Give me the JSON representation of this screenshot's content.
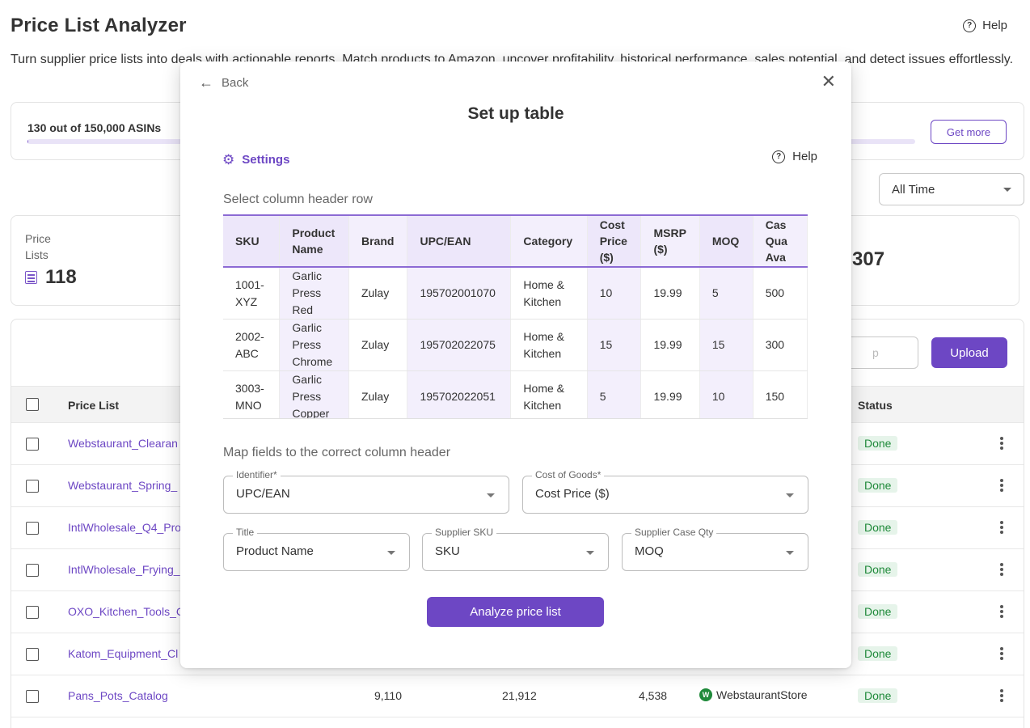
{
  "page": {
    "title": "Price List Analyzer",
    "help_label": "Help",
    "description": "Turn supplier price lists into deals with actionable reports. Match products to Amazon, uncover profitability, historical performance, sales potential, and detect issues effortlessly."
  },
  "quota": {
    "text": "130 out of 150,000 ASINs",
    "used_fraction": 0.001,
    "get_more_label": "Get more"
  },
  "filter": {
    "time_range": "All Time"
  },
  "stats": {
    "price_lists_label": "Price Lists",
    "price_lists_value": "118",
    "partial_value": "307"
  },
  "table": {
    "search_placeholder": "p",
    "upload_label": "Upload",
    "col_price_list": "Price List",
    "col_status": "Status",
    "rows": [
      {
        "name": "Webstaurant_Clearan",
        "status": "Done"
      },
      {
        "name": "Webstaurant_Spring_",
        "status": "Done"
      },
      {
        "name": "IntlWholesale_Q4_Pro",
        "status": "Done"
      },
      {
        "name": "IntlWholesale_Frying_",
        "status": "Done"
      },
      {
        "name": "OXO_Kitchen_Tools_C",
        "status": "Done"
      },
      {
        "name": "Katom_Equipment_Cl",
        "status": "Done"
      },
      {
        "name": "Pans_Pots_Catalog",
        "n1": "9,110",
        "n2": "21,912",
        "n3": "4,538",
        "store": "WebstaurantStore",
        "status": "Done"
      }
    ]
  },
  "modal": {
    "back_label": "Back",
    "title": "Set up table",
    "settings_label": "Settings",
    "help_label": "Help",
    "select_header_label": "Select column header row",
    "map_fields_label": "Map fields to the correct column header",
    "preview": {
      "headers": [
        "SKU",
        "Product Name",
        "Brand",
        "UPC/EAN",
        "Category",
        "Cost Price ($)",
        "MSRP ($)",
        "MOQ",
        "Case Quantity Available"
      ],
      "header_display": [
        "SKU",
        "Product Name",
        "Brand",
        "UPC/EAN",
        "Category",
        "Cost Price ($)",
        "MSRP ($)",
        "MOQ",
        "Cas Qua Ava"
      ],
      "rows": [
        [
          "1001-XYZ",
          "Garlic Press Red",
          "Zulay",
          "195702001070",
          "Home & Kitchen",
          "10",
          "19.99",
          "5",
          "500"
        ],
        [
          "2002-ABC",
          "Garlic Press Chrome",
          "Zulay",
          "195702022075",
          "Home & Kitchen",
          "15",
          "19.99",
          "15",
          "300"
        ],
        [
          "3003-MNO",
          "Garlic Press Copper",
          "Zulay",
          "195702022051",
          "Home & Kitchen",
          "5",
          "19.99",
          "10",
          "150"
        ]
      ]
    },
    "fields": {
      "identifier": {
        "label": "Identifier*",
        "value": "UPC/EAN"
      },
      "cost_of_goods": {
        "label": "Cost of Goods*",
        "value": "Cost Price ($)"
      },
      "title": {
        "label": "Title",
        "value": "Product Name"
      },
      "supplier_sku": {
        "label": "Supplier SKU",
        "value": "SKU"
      },
      "supplier_case_qty": {
        "label": "Supplier Case Qty",
        "value": "MOQ"
      }
    },
    "analyze_label": "Analyze price list"
  },
  "colors": {
    "accent": "#6d47c4",
    "selected_column": "#f3effc",
    "header_row": "#ede7fa",
    "done_badge": "#e6f4ea",
    "done_text": "#1f8a3a"
  }
}
